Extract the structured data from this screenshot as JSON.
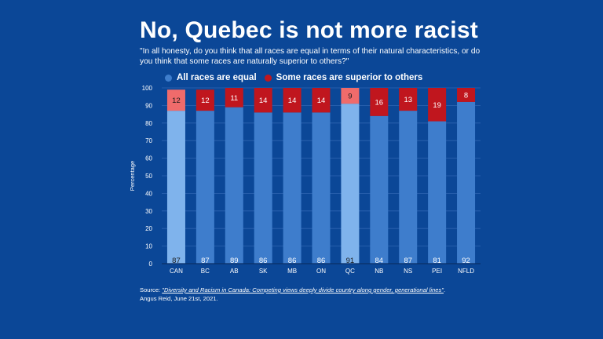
{
  "title": "No, Quebec is not more racist",
  "subtitle": "\"In all honesty, do you think that all races are equal in terms of their natural characteristics, or do you think that some races are naturally superior to others?\"",
  "source": {
    "prefix": "Source: ",
    "link_text": "\"Diversity and Racism in Canada: Competing views deeply divide country along gender, generational lines\"",
    "suffix": ".",
    "line2": "Angus Reid, June 21st, 2021."
  },
  "colors": {
    "equal": "#3e7dcc",
    "superior": "#c0161e",
    "equal_highlight": "#7fb3ec",
    "superior_highlight": "#ef6b6b",
    "background": "#0b4797"
  },
  "chart_data": {
    "type": "bar",
    "stacked": true,
    "categories": [
      "CAN",
      "BC",
      "AB",
      "SK",
      "MB",
      "ON",
      "QC",
      "NB",
      "NS",
      "PEI",
      "NFLD"
    ],
    "highlighted": [
      "CAN",
      "QC"
    ],
    "series": [
      {
        "name": "All races are equal",
        "values": [
          87,
          87,
          89,
          86,
          86,
          86,
          91,
          84,
          87,
          81,
          92
        ]
      },
      {
        "name": "Some races are superior to others",
        "values": [
          12,
          12,
          11,
          14,
          14,
          14,
          9,
          16,
          13,
          19,
          8
        ]
      }
    ],
    "ylabel": "Percentage",
    "xlabel": "",
    "ylim": [
      0,
      100
    ],
    "yticks": [
      0,
      10,
      20,
      30,
      40,
      50,
      60,
      70,
      80,
      90,
      100
    ],
    "grid": true,
    "legend": "top"
  }
}
